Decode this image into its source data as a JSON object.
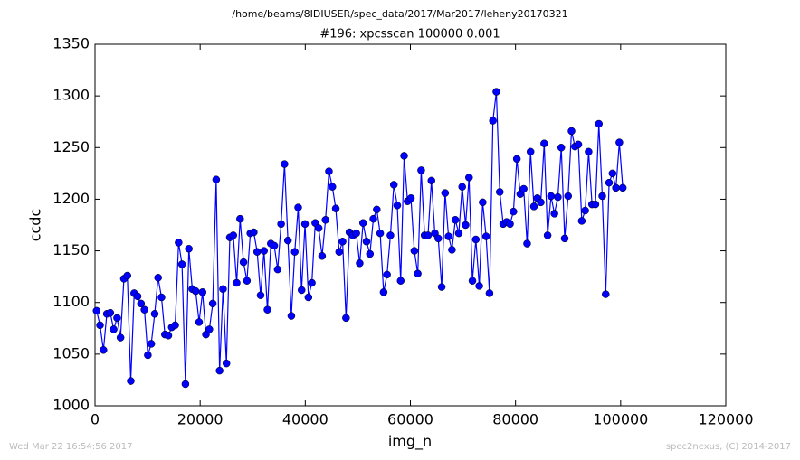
{
  "chart_data": {
    "type": "line",
    "suptitle": "/home/beams/8IDIUSER/spec_data/2017/Mar2017/leheny20170321",
    "title": "#196: xpcsscan 100000 0.001",
    "xlabel": "img_n",
    "ylabel": "ccdc",
    "footer_left": "Wed Mar 22 16:54:56 2017",
    "footer_right": "spec2nexus, (C) 2014-2017",
    "x": [
      300,
      950,
      1600,
      2250,
      2900,
      3550,
      4200,
      4850,
      5500,
      6150,
      6800,
      7450,
      8100,
      8750,
      9400,
      10050,
      10700,
      11350,
      12000,
      12650,
      13300,
      13950,
      14600,
      15250,
      15900,
      16550,
      17200,
      17850,
      18500,
      19150,
      19800,
      20450,
      21100,
      21750,
      22400,
      23050,
      23700,
      24350,
      25000,
      25650,
      26300,
      26950,
      27600,
      28250,
      28900,
      29550,
      30200,
      30850,
      31500,
      32150,
      32800,
      33450,
      34100,
      34750,
      35400,
      36050,
      36700,
      37350,
      38000,
      38650,
      39300,
      39950,
      40600,
      41250,
      41900,
      42550,
      43200,
      43850,
      44500,
      45150,
      45800,
      46450,
      47100,
      47750,
      48400,
      49050,
      49700,
      50350,
      51000,
      51650,
      52300,
      52950,
      53600,
      54250,
      54900,
      55550,
      56200,
      56850,
      57500,
      58150,
      58800,
      59450,
      60100,
      60750,
      61400,
      62050,
      62700,
      63350,
      64000,
      64650,
      65300,
      65950,
      66600,
      67250,
      67900,
      68550,
      69200,
      69850,
      70500,
      71150,
      71800,
      72450,
      73100,
      73750,
      74400,
      75050,
      75700,
      76350,
      77000,
      77650,
      78300,
      78950,
      79600,
      80250,
      80900,
      81550,
      82200,
      82850,
      83500,
      84150,
      84800,
      85450,
      86100,
      86750,
      87400,
      88050,
      88700,
      89350,
      90000,
      90650,
      91300,
      91950,
      92600,
      93250,
      93900,
      94550,
      95200,
      95850,
      96500,
      97150,
      97800,
      98450,
      99100,
      99750,
      100400
    ],
    "series": [
      {
        "name": "ccdc",
        "color": "#0000ff",
        "values": [
          1092,
          1078,
          1054,
          1089,
          1090,
          1074,
          1085,
          1066,
          1123,
          1126,
          1024,
          1109,
          1106,
          1099,
          1093,
          1049,
          1060,
          1089,
          1124,
          1105,
          1069,
          1068,
          1076,
          1078,
          1158,
          1137,
          1021,
          1152,
          1113,
          1111,
          1081,
          1110,
          1069,
          1074,
          1099,
          1219,
          1034,
          1113,
          1041,
          1163,
          1165,
          1119,
          1181,
          1139,
          1121,
          1167,
          1168,
          1149,
          1107,
          1150,
          1093,
          1157,
          1155,
          1132,
          1176,
          1234,
          1160,
          1087,
          1149,
          1192,
          1112,
          1176,
          1105,
          1119,
          1177,
          1172,
          1145,
          1180,
          1227,
          1212,
          1191,
          1149,
          1159,
          1085,
          1168,
          1165,
          1167,
          1138,
          1177,
          1159,
          1147,
          1181,
          1190,
          1167,
          1110,
          1127,
          1165,
          1214,
          1194,
          1121,
          1242,
          1198,
          1201,
          1150,
          1128,
          1228,
          1165,
          1165,
          1218,
          1167,
          1162,
          1115,
          1206,
          1164,
          1151,
          1180,
          1167,
          1212,
          1175,
          1221,
          1121,
          1161,
          1116,
          1197,
          1164,
          1109,
          1276,
          1304,
          1207,
          1176,
          1178,
          1176,
          1188,
          1239,
          1205,
          1210,
          1157,
          1246,
          1193,
          1201,
          1197,
          1254,
          1165,
          1203,
          1186,
          1202,
          1250,
          1162,
          1203,
          1266,
          1251,
          1253,
          1179,
          1189,
          1246,
          1195,
          1195,
          1273,
          1203,
          1108,
          1216,
          1225,
          1211,
          1255,
          1211
        ]
      }
    ],
    "xlim": [
      0,
      120000
    ],
    "xticks": [
      0,
      20000,
      40000,
      60000,
      80000,
      100000,
      120000
    ],
    "ylim": [
      1000,
      1350
    ],
    "yticks": [
      1000,
      1050,
      1100,
      1150,
      1200,
      1250,
      1300,
      1350
    ]
  }
}
